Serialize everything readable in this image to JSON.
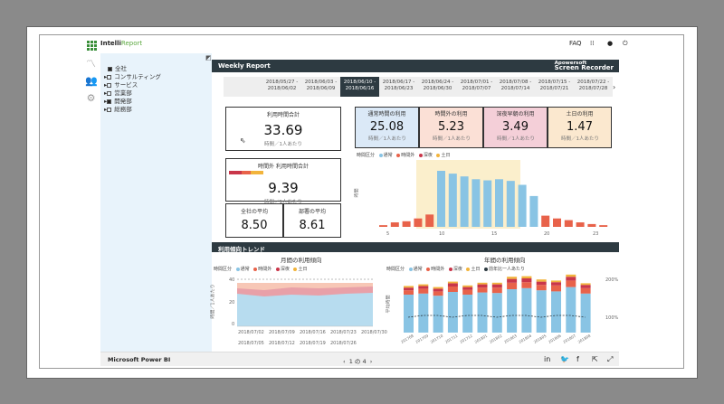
{
  "app": {
    "name_a": "Intelli",
    "name_b": "Report",
    "faq": "FAQ"
  },
  "tree": {
    "items": [
      {
        "label": "全社",
        "box": "on",
        "indent": 0
      },
      {
        "label": "コンサルティング",
        "box": "off",
        "indent": 1
      },
      {
        "label": "サービス",
        "box": "off",
        "indent": 1
      },
      {
        "label": "営業部",
        "box": "off",
        "indent": 1
      },
      {
        "label": "開発部",
        "box": "on",
        "indent": 1
      },
      {
        "label": "総務部",
        "box": "off",
        "indent": 1
      }
    ]
  },
  "report": {
    "title": "Weekly Report",
    "recorder_a": "Apowersoft",
    "recorder_b": "Screen Recorder",
    "dates": [
      {
        "a": "2018/05/27 -",
        "b": "2018/06/02"
      },
      {
        "a": "2018/06/03 -",
        "b": "2018/06/09"
      },
      {
        "a": "2018/06/10 -",
        "b": "2018/06/16"
      },
      {
        "a": "2018/06/17 -",
        "b": "2018/06/23"
      },
      {
        "a": "2018/06/24 -",
        "b": "2018/06/30"
      },
      {
        "a": "2018/07/01 -",
        "b": "2018/07/07"
      },
      {
        "a": "2018/07/08 -",
        "b": "2018/07/14"
      },
      {
        "a": "2018/07/15 -",
        "b": "2018/07/21"
      },
      {
        "a": "2018/07/22 -",
        "b": "2018/07/28"
      }
    ],
    "selected_date": 2,
    "total": {
      "title": "利用時間合計",
      "value": "33.69",
      "sub": "時間／1人あたり"
    },
    "overtime": {
      "title": "時間外 利用時間合計",
      "value": "9.39",
      "sub": "時間／1人あたり"
    },
    "company_avg": {
      "title": "全社の平均",
      "value": "8.50"
    },
    "dept_avg": {
      "title": "部署の平均",
      "value": "8.61"
    },
    "kpis": [
      {
        "title": "通常時間の利用",
        "value": "25.08",
        "sub": "時間／1人あたり",
        "bg": "#dbe9f7"
      },
      {
        "title": "時間外の利用",
        "value": "5.23",
        "sub": "時間／1人あたり",
        "bg": "#fbe0d6"
      },
      {
        "title": "深夜早朝の利用",
        "value": "3.49",
        "sub": "時間／1人あたり",
        "bg": "#f4cfd8"
      },
      {
        "title": "土日の利用",
        "value": "1.47",
        "sub": "時間／1人あたり",
        "bg": "#fbe8cf"
      }
    ],
    "trend_section": "利用傾向トレンド",
    "monthly_title": "月間の利用傾向",
    "yearly_title": "年間の利用傾向"
  },
  "legend": {
    "label": "時間区分",
    "items": [
      "通常",
      "時間外",
      "深夜",
      "土日"
    ],
    "yearly_extra": "前年比一人あたり"
  },
  "colors": {
    "normal": "#89c4e4",
    "overtime": "#e8624a",
    "late": "#c9364a",
    "weekend": "#f2b43c",
    "header": "#2d3a41"
  },
  "chart_data": [
    {
      "type": "bar",
      "name": "hourly",
      "x_ticks": [
        "5",
        "10",
        "15",
        "20",
        "23"
      ],
      "ylabel": "時間",
      "values": [
        0.3,
        0.8,
        1.0,
        1.5,
        2.2,
        10,
        9.5,
        9.0,
        8.5,
        8.3,
        8.5,
        8.2,
        7.5,
        5.5,
        2.0,
        1.5,
        1.2,
        0.8,
        0.5,
        0.3
      ],
      "colors_idx": [
        1,
        1,
        1,
        1,
        1,
        0,
        0,
        0,
        0,
        0,
        0,
        0,
        0,
        0,
        1,
        1,
        1,
        1,
        1,
        1
      ]
    },
    {
      "type": "area",
      "name": "monthly",
      "ylabel": "時間／1人あたり",
      "yticks": [
        "40",
        "20",
        "0"
      ],
      "x_ticks_row1": [
        "2018/07/02",
        "2018/07/09",
        "2018/07/16",
        "2018/07/23",
        "2018/07/30"
      ],
      "x_ticks_row2": [
        "2018/07/05",
        "2018/07/12",
        "2018/07/19",
        "2018/07/26"
      ]
    },
    {
      "type": "bar",
      "name": "yearly",
      "ylabel": "平均時間",
      "right_ticks": [
        "200%",
        "100%"
      ],
      "x_ticks": [
        "201708",
        "201709",
        "201710",
        "201711",
        "201712",
        "201801",
        "201802",
        "201803",
        "201804",
        "201805",
        "201806",
        "201807",
        "201808"
      ],
      "series": [
        {
          "name": "通常",
          "values": [
            70,
            72,
            68,
            75,
            70,
            74,
            73,
            80,
            82,
            78,
            76,
            84,
            72
          ]
        },
        {
          "name": "時間外",
          "values": [
            8,
            9,
            8,
            10,
            9,
            9,
            10,
            12,
            11,
            10,
            11,
            12,
            10
          ]
        },
        {
          "name": "深夜",
          "values": [
            5,
            5,
            5,
            6,
            5,
            6,
            6,
            7,
            7,
            6,
            6,
            7,
            6
          ]
        },
        {
          "name": "土日",
          "values": [
            3,
            3,
            3,
            3,
            3,
            3,
            3,
            4,
            4,
            4,
            3,
            4,
            3
          ]
        }
      ]
    }
  ],
  "footer": {
    "brand": "Microsoft Power BI",
    "page": "1 の 4"
  }
}
